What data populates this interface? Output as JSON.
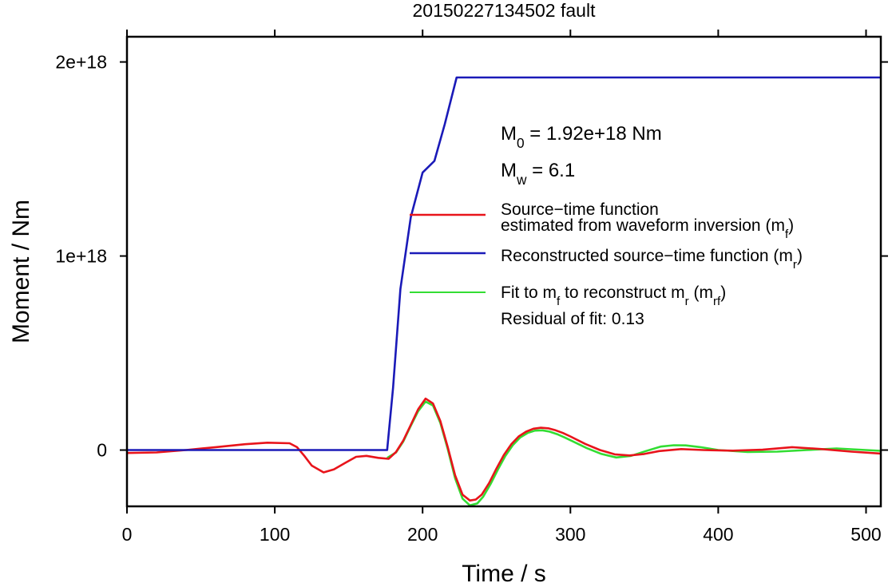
{
  "chart_data": {
    "type": "line",
    "title": "20150227134502 fault",
    "xlabel": "Time / s",
    "ylabel": "Moment / Nm",
    "xlim": [
      0,
      510
    ],
    "ylim": [
      -2.9e+17,
      2.13e+18
    ],
    "x_ticks": [
      0,
      100,
      200,
      300,
      400,
      500
    ],
    "x_tick_labels": [
      "0",
      "100",
      "200",
      "300",
      "400",
      "500"
    ],
    "y_ticks": [
      0,
      1e+18,
      2e+18
    ],
    "y_tick_labels": [
      "0",
      "1e+18",
      "2e+18"
    ],
    "grid": false,
    "legend_position": "right",
    "annotations": {
      "m0_prefix": "M",
      "m0_sub": "0",
      "m0_value": " = 1.92e+18 Nm",
      "mw_prefix": "M",
      "mw_sub": "w",
      "mw_value": " = 6.1",
      "residual": "Residual of fit: 0.13"
    },
    "legend": [
      {
        "key": "mf",
        "lines": [
          "Source−time function",
          "estimated from waveform inversion (m",
          "f",
          ")"
        ],
        "color": "#e8141b"
      },
      {
        "key": "mr",
        "lines": [
          "Reconstructed source−time function (m",
          "r",
          ")"
        ],
        "color": "#1a1ab8"
      },
      {
        "key": "mrf",
        "lines": [
          "Fit to m",
          "f",
          " to reconstruct m",
          "r",
          " (m",
          "rf",
          ")"
        ],
        "color": "#33dd33"
      }
    ],
    "series": [
      {
        "key": "mf",
        "color": "#e8141b",
        "x": [
          0,
          20,
          40,
          60,
          80,
          95,
          110,
          115,
          120,
          125,
          133,
          140,
          148,
          155,
          162,
          170,
          177,
          182,
          187,
          192,
          197,
          202,
          207,
          212,
          217,
          222,
          227,
          232,
          236,
          240,
          245,
          250,
          255,
          260,
          265,
          270,
          275,
          280,
          285,
          290,
          295,
          300,
          310,
          320,
          330,
          340,
          350,
          360,
          375,
          390,
          410,
          430,
          450,
          470,
          490,
          510
        ],
        "y": [
          -1.5e+16,
          -1.2e+16,
          0,
          1.5e+16,
          3e+16,
          3.8e+16,
          3.5e+16,
          1.5e+16,
          -3e+16,
          -8e+16,
          -1.15e+17,
          -1e+17,
          -6.5e+16,
          -3.5e+16,
          -3e+16,
          -4e+16,
          -4.5e+16,
          -1e+16,
          5e+16,
          1.3e+17,
          2.1e+17,
          2.65e+17,
          2.4e+17,
          1.5e+17,
          1.5e+16,
          -1.3e+17,
          -2.3e+17,
          -2.6e+17,
          -2.55e+17,
          -2.3e+17,
          -1.7e+17,
          -9.5e+16,
          -2.5e+16,
          3e+16,
          7e+16,
          9.5e+16,
          1.1e+17,
          1.15e+17,
          1.12e+17,
          1.02e+17,
          8.8e+16,
          7e+16,
          3.2e+16,
          0,
          -2.2e+16,
          -2.8e+16,
          -2e+16,
          -5000000000000000.0,
          5000000000000000.0,
          0,
          -3000000000000000.0,
          2000000000000000.0,
          1.5e+16,
          5000000000000000.0,
          -8000000000000000.0,
          -1.8e+16
        ]
      },
      {
        "key": "mr",
        "color": "#1a1ab8",
        "x": [
          0,
          176,
          180,
          185,
          192,
          200,
          208,
          215,
          223,
          510
        ],
        "y": [
          0,
          0,
          3.2e+17,
          8.3e+17,
          1.2e+18,
          1.43e+18,
          1.49e+18,
          1.68e+18,
          1.92e+18,
          1.92e+18
        ]
      },
      {
        "key": "mrf",
        "color": "#33dd33",
        "x": [
          176,
          182,
          187,
          192,
          197,
          202,
          207,
          212,
          217,
          222,
          227,
          232,
          237,
          241,
          246,
          251,
          256,
          261,
          266,
          271,
          276,
          281,
          286,
          291,
          296,
          301,
          311,
          321,
          331,
          341,
          351,
          361,
          370,
          378,
          388,
          400,
          420,
          440,
          460,
          480,
          500,
          510
        ],
        "y": [
          -4e+16,
          -1.2e+16,
          4.5e+16,
          1.25e+17,
          2e+17,
          2.5e+17,
          2.3e+17,
          1.4e+17,
          5000000000000000.0,
          -1.45e+17,
          -2.5e+17,
          -2.85e+17,
          -2.75e+17,
          -2.4e+17,
          -1.75e+17,
          -1e+17,
          -3e+16,
          2.5e+16,
          6.5e+16,
          8.8e+16,
          1e+17,
          1.02e+17,
          9.5e+16,
          8.2e+16,
          6.5e+16,
          4.7e+16,
          1e+16,
          -2e+16,
          -3.8e+16,
          -3e+16,
          -5000000000000000.0,
          1.8e+16,
          2.5e+16,
          2.4e+16,
          1.5e+16,
          0,
          -1e+16,
          -8000000000000000.0,
          0,
          8000000000000000.0,
          0,
          -4000000000000000.0
        ]
      }
    ]
  }
}
